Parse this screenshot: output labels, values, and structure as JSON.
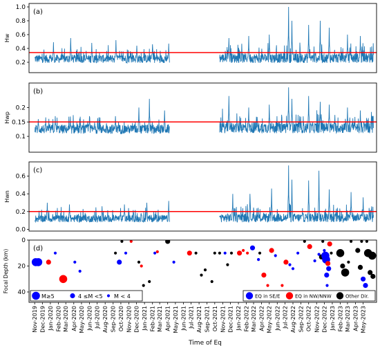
{
  "figure": {
    "x_axis_label": "Time of Eq",
    "x_tick_labels": [
      "Nov-2019",
      "Dec-2019",
      "Jan-2020",
      "Feb-2020",
      "Mar-2020",
      "Apr-2020",
      "May-2020",
      "Jun-2020",
      "Jul-2020",
      "Aug-2020",
      "Sep-2020",
      "Oct-2020",
      "Nov-2020",
      "Dec-2020",
      "Jan-2021",
      "Feb-2021",
      "Mar-2021",
      "Apr-2021",
      "May-2021",
      "Jun-2021",
      "Jul-2021",
      "Aug-2021",
      "Sep-2021",
      "Oct-2021",
      "Nov-2021",
      "Dec-2021",
      "Jan-2022",
      "Feb-2022",
      "Mar-2022",
      "Apr-2022",
      "May-2022",
      "Jun-2022",
      "Jul-2022",
      "Aug-2022",
      "Sep-2022",
      "Oct-2022",
      "Nov-2022",
      "Dec-2022",
      "Jan-2023",
      "Feb-2023",
      "Mar-2023",
      "Apr-2023",
      "May-2023"
    ],
    "colors": {
      "series": "#1f77b4",
      "threshold": "#ff0000",
      "se_e": "#0000ff",
      "nw_nnw": "#ff0000",
      "other": "#000000"
    }
  },
  "chart_data": [
    {
      "type": "line",
      "panel_label": "(a)",
      "ylabel": "Hw",
      "ylim": [
        0.05,
        1.05
      ],
      "yticks": [
        0.2,
        0.4,
        0.6,
        0.8,
        1.0
      ],
      "y_tick_labels": [
        "0.2",
        "0.4",
        "0.6",
        "0.8",
        "1.0"
      ],
      "threshold": 0.34,
      "segments": [
        {
          "x_start": "2019-11-01",
          "x_end": "2021-04-08",
          "baseline": 0.25,
          "noise": 0.06,
          "spikes": [
            [
              "2020-01-13",
              0.49
            ],
            [
              "2020-03-20",
              0.55
            ],
            [
              "2020-06-10",
              0.48
            ],
            [
              "2020-09-12",
              0.52
            ],
            [
              "2020-12-02",
              0.44
            ],
            [
              "2021-02-01",
              0.46
            ],
            [
              "2021-04-05",
              0.47
            ]
          ]
        },
        {
          "x_start": "2021-10-20",
          "x_end": "2023-06-10",
          "baseline": 0.26,
          "noise": 0.07,
          "spikes": [
            [
              "2021-11-25",
              0.55
            ],
            [
              "2022-02-10",
              0.58
            ],
            [
              "2022-05-01",
              0.6
            ],
            [
              "2022-07-15",
              1.0
            ],
            [
              "2022-07-28",
              0.8
            ],
            [
              "2022-10-01",
              0.74
            ],
            [
              "2022-11-15",
              0.8
            ],
            [
              "2022-12-20",
              0.7
            ],
            [
              "2023-03-01",
              0.6
            ],
            [
              "2023-04-20",
              0.58
            ]
          ]
        }
      ]
    },
    {
      "type": "line",
      "panel_label": "(b)",
      "ylabel": "Hwp",
      "ylim": [
        0.045,
        0.285
      ],
      "yticks": [
        0.1,
        0.15,
        0.2
      ],
      "y_tick_labels": [
        "0.1",
        "0.15",
        "0.2"
      ],
      "threshold": 0.15,
      "segments": [
        {
          "x_start": "2019-11-01",
          "x_end": "2021-04-08",
          "baseline": 0.125,
          "noise": 0.016,
          "spikes": [
            [
              "2019-11-15",
              0.16
            ],
            [
              "2020-01-20",
              0.17
            ],
            [
              "2020-06-01",
              0.17
            ],
            [
              "2020-09-10",
              0.17
            ],
            [
              "2020-12-10",
              0.2
            ],
            [
              "2021-01-20",
              0.23
            ],
            [
              "2021-03-20",
              0.19
            ]
          ]
        },
        {
          "x_start": "2021-10-20",
          "x_end": "2023-06-10",
          "baseline": 0.13,
          "noise": 0.019,
          "spikes": [
            [
              "2021-11-25",
              0.24
            ],
            [
              "2022-02-10",
              0.2
            ],
            [
              "2022-05-01",
              0.21
            ],
            [
              "2022-07-15",
              0.27
            ],
            [
              "2022-07-28",
              0.23
            ],
            [
              "2022-10-01",
              0.24
            ],
            [
              "2022-11-15",
              0.22
            ],
            [
              "2022-12-20",
              0.21
            ],
            [
              "2023-03-01",
              0.2
            ],
            [
              "2023-04-20",
              0.19
            ]
          ]
        }
      ]
    },
    {
      "type": "line",
      "panel_label": "(c)",
      "ylabel": "Hwn",
      "ylim": [
        -0.02,
        0.76
      ],
      "yticks": [
        0.0,
        0.2,
        0.4,
        0.6
      ],
      "y_tick_labels": [
        "0.0",
        "0.2",
        "0.4",
        "0.6"
      ],
      "threshold": 0.2,
      "segments": [
        {
          "x_start": "2019-11-01",
          "x_end": "2021-04-08",
          "baseline": 0.12,
          "noise": 0.04,
          "spikes": [
            [
              "2019-12-20",
              0.3
            ],
            [
              "2020-03-15",
              0.28
            ],
            [
              "2020-07-20",
              0.26
            ],
            [
              "2020-10-15",
              0.28
            ],
            [
              "2021-01-10",
              0.3
            ],
            [
              "2021-04-05",
              0.32
            ]
          ]
        },
        {
          "x_start": "2021-10-20",
          "x_end": "2023-06-10",
          "baseline": 0.13,
          "noise": 0.05,
          "spikes": [
            [
              "2021-12-10",
              0.4
            ],
            [
              "2022-02-15",
              0.4
            ],
            [
              "2022-05-10",
              0.46
            ],
            [
              "2022-07-15",
              0.72
            ],
            [
              "2022-07-28",
              0.56
            ],
            [
              "2022-10-01",
              0.55
            ],
            [
              "2022-11-10",
              0.66
            ],
            [
              "2022-12-20",
              0.45
            ],
            [
              "2023-03-15",
              0.42
            ],
            [
              "2023-05-01",
              0.36
            ]
          ]
        }
      ]
    },
    {
      "type": "scatter",
      "panel_label": "(d)",
      "ylabel": "Focal Depth (km)",
      "ylim": [
        0,
        48
      ],
      "y_inverted": true,
      "yticks": [
        0,
        20,
        40
      ],
      "y_tick_labels": [
        "0",
        "20",
        "40"
      ],
      "magnitude_legend": [
        {
          "label": "M≥5",
          "size_class": "large"
        },
        {
          "label": "4 ≤M <5",
          "size_class": "medium"
        },
        {
          "label": "M < 4",
          "size_class": "small"
        }
      ],
      "direction_legend": [
        {
          "label": "EQ in SE/E",
          "color_key": "se_e"
        },
        {
          "label": "EQ in NW/NNW",
          "color_key": "nw_nnw"
        },
        {
          "label": "Other Dir.",
          "color_key": "other"
        }
      ],
      "points": [
        [
          "2019-11-05",
          17,
          "b",
          "L"
        ],
        [
          "2019-11-15",
          17,
          "b",
          "L"
        ],
        [
          "2019-12-25",
          17,
          "r",
          "M"
        ],
        [
          "2020-01-20",
          10,
          "b",
          "S"
        ],
        [
          "2020-02-20",
          30,
          "r",
          "L"
        ],
        [
          "2020-04-05",
          17,
          "b",
          "S"
        ],
        [
          "2020-04-25",
          24,
          "b",
          "S"
        ],
        [
          "2020-09-10",
          10,
          "k",
          "S"
        ],
        [
          "2020-09-25",
          17,
          "b",
          "M"
        ],
        [
          "2020-10-05",
          1,
          "k",
          "S"
        ],
        [
          "2020-10-20",
          10,
          "b",
          "S"
        ],
        [
          "2020-11-10",
          1,
          "r",
          "S"
        ],
        [
          "2020-12-10",
          17,
          "k",
          "S"
        ],
        [
          "2020-12-20",
          20,
          "r",
          "S"
        ],
        [
          "2020-12-28",
          35,
          "k",
          "S"
        ],
        [
          "2021-01-20",
          32,
          "k",
          "S"
        ],
        [
          "2021-02-10",
          10,
          "b",
          "S"
        ],
        [
          "2021-02-20",
          9,
          "r",
          "S"
        ],
        [
          "2021-04-01",
          1,
          "k",
          "M"
        ],
        [
          "2021-04-25",
          17,
          "b",
          "S"
        ],
        [
          "2021-06-25",
          10,
          "r",
          "M"
        ],
        [
          "2021-07-20",
          10,
          "k",
          "S"
        ],
        [
          "2021-08-10",
          27,
          "k",
          "S"
        ],
        [
          "2021-08-25",
          23,
          "k",
          "S"
        ],
        [
          "2021-09-20",
          32,
          "k",
          "S"
        ],
        [
          "2021-10-01",
          10,
          "k",
          "S"
        ],
        [
          "2021-10-20",
          10,
          "k",
          "S"
        ],
        [
          "2021-11-10",
          10,
          "b",
          "S"
        ],
        [
          "2021-11-20",
          19,
          "k",
          "S"
        ],
        [
          "2021-12-05",
          10,
          "k",
          "S"
        ],
        [
          "2022-01-05",
          10,
          "r",
          "M"
        ],
        [
          "2022-01-20",
          8,
          "r",
          "S"
        ],
        [
          "2022-02-05",
          10,
          "r",
          "S"
        ],
        [
          "2022-02-25",
          6,
          "b",
          "M"
        ],
        [
          "2022-03-20",
          15,
          "b",
          "S"
        ],
        [
          "2022-03-25",
          10,
          "k",
          "S"
        ],
        [
          "2022-04-10",
          27,
          "r",
          "M"
        ],
        [
          "2022-04-25",
          35,
          "r",
          "S"
        ],
        [
          "2022-05-10",
          8,
          "r",
          "M"
        ],
        [
          "2022-05-25",
          12,
          "b",
          "S"
        ],
        [
          "2022-06-20",
          35,
          "r",
          "S"
        ],
        [
          "2022-07-05",
          17,
          "r",
          "M"
        ],
        [
          "2022-07-20",
          19,
          "b",
          "S"
        ],
        [
          "2022-08-01",
          22,
          "b",
          "S"
        ],
        [
          "2022-08-20",
          10,
          "b",
          "S"
        ],
        [
          "2022-09-15",
          1,
          "k",
          "S"
        ],
        [
          "2022-10-05",
          5,
          "r",
          "M"
        ],
        [
          "2022-10-25",
          16,
          "b",
          "S"
        ],
        [
          "2022-11-10",
          11,
          "b",
          "S"
        ],
        [
          "2022-11-20",
          13,
          "k",
          "M"
        ],
        [
          "2022-11-25",
          1,
          "k",
          "S"
        ],
        [
          "2022-12-01",
          8,
          "b",
          "S"
        ],
        [
          "2022-12-05",
          12,
          "b",
          "L"
        ],
        [
          "2022-12-08",
          15,
          "b",
          "L"
        ],
        [
          "2022-12-10",
          27,
          "b",
          "M"
        ],
        [
          "2022-12-12",
          35,
          "b",
          "S"
        ],
        [
          "2022-12-15",
          18,
          "r",
          "M"
        ],
        [
          "2022-12-18",
          22,
          "b",
          "M"
        ],
        [
          "2022-12-22",
          3,
          "r",
          "M"
        ],
        [
          "2022-12-28",
          10,
          "k",
          "S"
        ],
        [
          "2023-02-01",
          10,
          "k",
          "L"
        ],
        [
          "2023-02-10",
          20,
          "k",
          "M"
        ],
        [
          "2023-02-20",
          25,
          "k",
          "L"
        ],
        [
          "2023-02-25",
          25,
          "k",
          "M"
        ],
        [
          "2023-03-05",
          17,
          "k",
          "S"
        ],
        [
          "2023-03-15",
          1,
          "k",
          "S"
        ],
        [
          "2023-04-10",
          8,
          "k",
          "M"
        ],
        [
          "2023-04-20",
          21,
          "k",
          "M"
        ],
        [
          "2023-04-25",
          1,
          "k",
          "S"
        ],
        [
          "2023-05-01",
          30,
          "b",
          "M"
        ],
        [
          "2023-05-10",
          35,
          "b",
          "M"
        ],
        [
          "2023-05-15",
          1,
          "k",
          "S"
        ],
        [
          "2023-05-20",
          10,
          "k",
          "L"
        ],
        [
          "2023-05-28",
          25,
          "k",
          "M"
        ],
        [
          "2023-06-05",
          12,
          "k",
          "L"
        ],
        [
          "2023-06-08",
          28,
          "k",
          "M"
        ]
      ]
    }
  ]
}
